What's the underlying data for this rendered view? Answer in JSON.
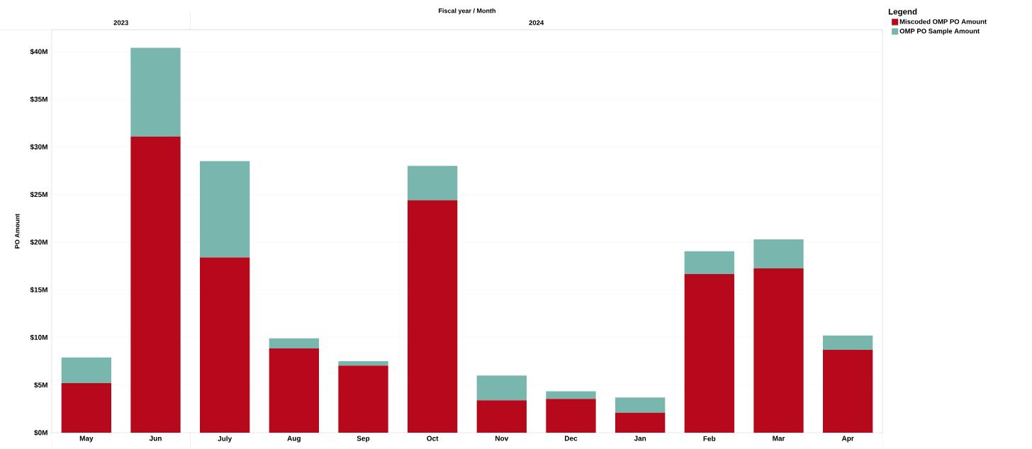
{
  "chart_data": {
    "type": "bar",
    "stacked": true,
    "xlabel": "Fiscal year / Month",
    "ylabel": "PO Amount",
    "legend_title": "Legend",
    "legend": "top right",
    "categories": [
      "May",
      "Jun",
      "July",
      "Aug",
      "Sep",
      "Oct",
      "Nov",
      "Dec",
      "Jan",
      "Feb",
      "Mar",
      "Apr"
    ],
    "annotations": [
      "2023",
      "2024"
    ],
    "series": [
      {
        "name": "Miscoded OMP PO Amount",
        "color": "#b60a1c",
        "values": [
          5.2,
          31.1,
          18.4,
          8.85,
          7.05,
          24.4,
          3.4,
          3.55,
          2.1,
          16.65,
          17.25,
          8.7
        ]
      },
      {
        "name": "OMP PO Sample Amount",
        "color": "#79b7ae",
        "values": [
          2.7,
          9.3,
          10.1,
          1.05,
          0.45,
          3.6,
          2.6,
          0.8,
          1.6,
          2.4,
          3.05,
          1.5
        ]
      }
    ],
    "ylim": [
      0,
      42.3
    ],
    "yticks": [
      {
        "value": 0,
        "label": "$0M"
      },
      {
        "value": 5,
        "label": "$5M"
      },
      {
        "value": 10,
        "label": "$10M"
      },
      {
        "value": 15,
        "label": "$15M"
      },
      {
        "value": 20,
        "label": "$20M"
      },
      {
        "value": 25,
        "label": "$25M"
      },
      {
        "value": 30,
        "label": "$30M"
      },
      {
        "value": 35,
        "label": "$35M"
      },
      {
        "value": 40,
        "label": "$40M"
      }
    ],
    "grid": "y"
  }
}
